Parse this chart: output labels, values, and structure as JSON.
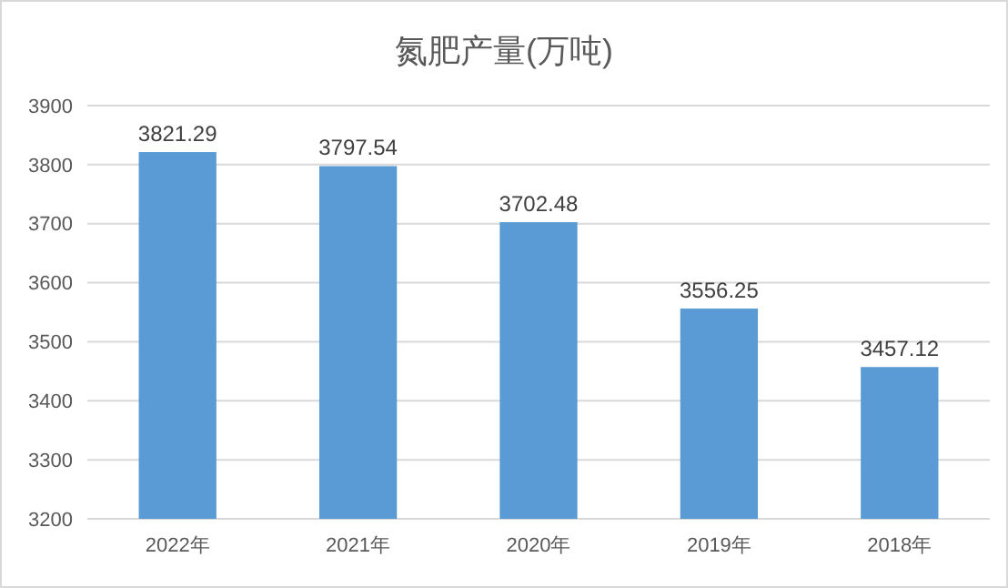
{
  "chart_data": {
    "type": "bar",
    "title": "氮肥产量(万吨)",
    "categories": [
      "2022年",
      "2021年",
      "2020年",
      "2019年",
      "2018年"
    ],
    "values": [
      3821.29,
      3797.54,
      3702.48,
      3556.25,
      3457.12
    ],
    "color": "#5b9bd5",
    "ylim": [
      3200,
      3900
    ],
    "yticks": [
      3200,
      3300,
      3400,
      3500,
      3600,
      3700,
      3800,
      3900
    ],
    "grid": "y",
    "data_labels": true
  }
}
